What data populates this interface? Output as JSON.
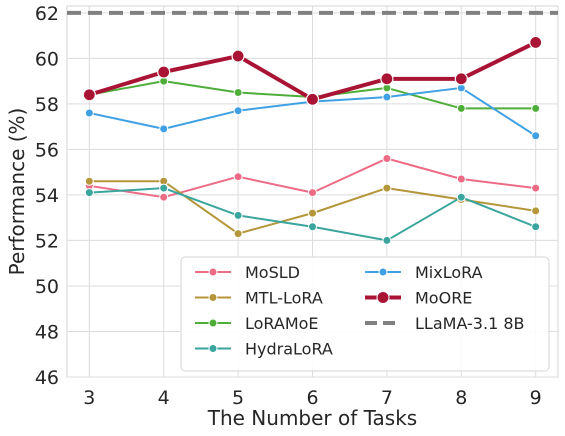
{
  "chart_data": {
    "type": "line",
    "xlabel": "The Number of Tasks",
    "ylabel": "Performance (%)",
    "x": [
      3,
      4,
      5,
      6,
      7,
      8,
      9
    ],
    "xlim": [
      2.7,
      9.3
    ],
    "ylim": [
      46,
      62.3
    ],
    "yticks": [
      46,
      48,
      50,
      52,
      54,
      56,
      58,
      60,
      62
    ],
    "grid": true,
    "legend": {
      "placement": "bottom-right",
      "columns": 2
    },
    "series": [
      {
        "name": "MoSLD",
        "color": "#ee6b86",
        "values": [
          54.4,
          53.9,
          54.8,
          54.1,
          55.6,
          54.7,
          54.3
        ]
      },
      {
        "name": "MTL-LoRA",
        "color": "#b5963a",
        "values": [
          54.6,
          54.6,
          52.3,
          53.2,
          54.3,
          53.8,
          53.3
        ]
      },
      {
        "name": "LoRAMoE",
        "color": "#4fae3a",
        "values": [
          58.4,
          59.0,
          58.5,
          58.3,
          58.7,
          57.8,
          57.8
        ]
      },
      {
        "name": "HydraLoRA",
        "color": "#3aa59d",
        "values": [
          54.1,
          54.3,
          53.1,
          52.6,
          52.0,
          53.9,
          52.6
        ]
      },
      {
        "name": "MixLoRA",
        "color": "#3fa1e3",
        "values": [
          57.6,
          56.9,
          57.7,
          58.1,
          58.3,
          58.7,
          56.6
        ]
      },
      {
        "name": "MoORE",
        "color": "#aa1434",
        "bold": true,
        "values": [
          58.4,
          59.4,
          60.1,
          58.2,
          59.1,
          59.1,
          60.7
        ]
      }
    ],
    "reference_lines": [
      {
        "name": "LLaMA-3.1 8B",
        "value": 62.0,
        "color": "#808080",
        "style": "dashed"
      }
    ]
  }
}
